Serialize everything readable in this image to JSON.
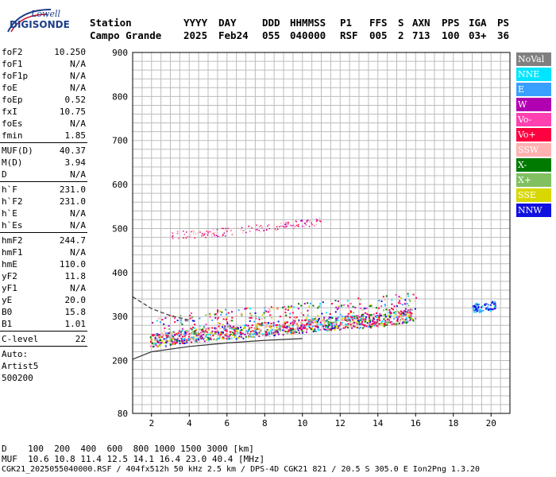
{
  "logo": {
    "top": "Lowell",
    "main": "DIGISONDE"
  },
  "header": {
    "labels": [
      "Station",
      "YYYY",
      "DAY",
      "DDD",
      "HHMMSS",
      "P1",
      "FFS",
      "S",
      "AXN",
      "PPS",
      "IGA",
      "PS"
    ],
    "values": [
      "Campo Grande",
      "2025",
      "Feb24",
      "055",
      "040000",
      "RSF",
      "005",
      "2",
      "713",
      "100",
      "03+",
      "36"
    ]
  },
  "params": {
    "group1": [
      {
        "label": "foF2",
        "value": "10.250"
      },
      {
        "label": "foF1",
        "value": "N/A"
      },
      {
        "label": "foF1p",
        "value": "N/A"
      },
      {
        "label": "foE",
        "value": "N/A"
      },
      {
        "label": "foEp",
        "value": "0.52"
      },
      {
        "label": "fxI",
        "value": "10.75"
      },
      {
        "label": "foEs",
        "value": "N/A"
      },
      {
        "label": "fmin",
        "value": "1.85"
      }
    ],
    "group2": [
      {
        "label": "MUF(D)",
        "value": "40.37"
      },
      {
        "label": "M(D)",
        "value": "3.94"
      },
      {
        "label": "D",
        "value": "N/A"
      }
    ],
    "group3": [
      {
        "label": "h`F",
        "value": "231.0"
      },
      {
        "label": "h`F2",
        "value": "231.0"
      },
      {
        "label": "h`E",
        "value": "N/A"
      },
      {
        "label": "h`Es",
        "value": "N/A"
      }
    ],
    "group4": [
      {
        "label": "hmF2",
        "value": "244.7"
      },
      {
        "label": "hmF1",
        "value": "N/A"
      },
      {
        "label": "hmE",
        "value": "110.0"
      },
      {
        "label": "yF2",
        "value": "11.8"
      },
      {
        "label": "yF1",
        "value": "N/A"
      },
      {
        "label": "yE",
        "value": "20.0"
      },
      {
        "label": "B0",
        "value": "15.8"
      },
      {
        "label": "B1",
        "value": "1.01"
      }
    ],
    "group5": [
      {
        "label": "C-level",
        "value": "22"
      }
    ],
    "autoscale": [
      "Auto:",
      "Artist5",
      "500200"
    ]
  },
  "legend": [
    {
      "label": "NoVal",
      "color": "#808080"
    },
    {
      "label": "NNE",
      "color": "#00e5ff"
    },
    {
      "label": "E",
      "color": "#3aa0ff"
    },
    {
      "label": "W",
      "color": "#b000b0"
    },
    {
      "label": "Vo-",
      "color": "#ff40b0"
    },
    {
      "label": "Vo+",
      "color": "#ff0040"
    },
    {
      "label": "SSW",
      "color": "#ffb0b0"
    },
    {
      "label": "X-",
      "color": "#007a00"
    },
    {
      "label": "X+",
      "color": "#80c060"
    },
    {
      "label": "SSE",
      "color": "#d8d800"
    },
    {
      "label": "NNW",
      "color": "#1010e0"
    }
  ],
  "footer": {
    "d_line": "D    100  200  400  600  800 1000 1500 3000 [km]",
    "muf_line": "MUF  10.6 10.8 11.4 12.5 14.1 16.4 23.0 40.4 [MHz]",
    "file_line": "CGK21_2025055040000.RSF / 404fx512h 50 kHz 2.5 km / DPS-4D CGK21 821 / 20.5 S 305.0 E Ion2Png 1.3.20"
  },
  "chart_data": {
    "type": "scatter",
    "title": "",
    "xlabel": "",
    "ylabel": "",
    "xlim": [
      1,
      21
    ],
    "ylim": [
      80,
      900
    ],
    "x_ticks": [
      2,
      4,
      6,
      8,
      10,
      12,
      14,
      16,
      18,
      20
    ],
    "y_ticks": [
      80,
      200,
      300,
      400,
      500,
      600,
      700,
      800,
      900
    ],
    "grid": true,
    "legend_position": "right",
    "trace_F2": {
      "x": [
        1.9,
        2.5,
        3.0,
        4.0,
        5.0,
        6.0,
        7.0,
        8.0,
        9.0,
        10.0,
        11.0,
        12.0,
        13.0,
        14.0,
        15.0,
        16.0
      ],
      "y": [
        238,
        242,
        245,
        250,
        255,
        258,
        262,
        266,
        270,
        273,
        277,
        280,
        284,
        288,
        292,
        298
      ]
    },
    "trace_upper": {
      "x": [
        3.0,
        4.0,
        5.0,
        6.0,
        7.0,
        8.0,
        9.0,
        10.0,
        11.0
      ],
      "y": [
        486,
        488,
        490,
        494,
        498,
        502,
        506,
        512,
        518
      ]
    },
    "cluster_right": {
      "x": [
        19.0,
        19.2,
        19.4,
        19.6,
        19.8,
        20.0,
        20.2
      ],
      "y": [
        316,
        322,
        318,
        324,
        320,
        326,
        328
      ]
    },
    "profile_lower": {
      "x": [
        1.0,
        2.0,
        4.0,
        6.0,
        8.0,
        10.0
      ],
      "y": [
        203,
        220,
        232,
        240,
        246,
        250
      ]
    },
    "profile_upper": {
      "x": [
        1.0,
        2.0,
        3.0,
        4.0
      ],
      "y": [
        345,
        318,
        302,
        292
      ]
    }
  }
}
